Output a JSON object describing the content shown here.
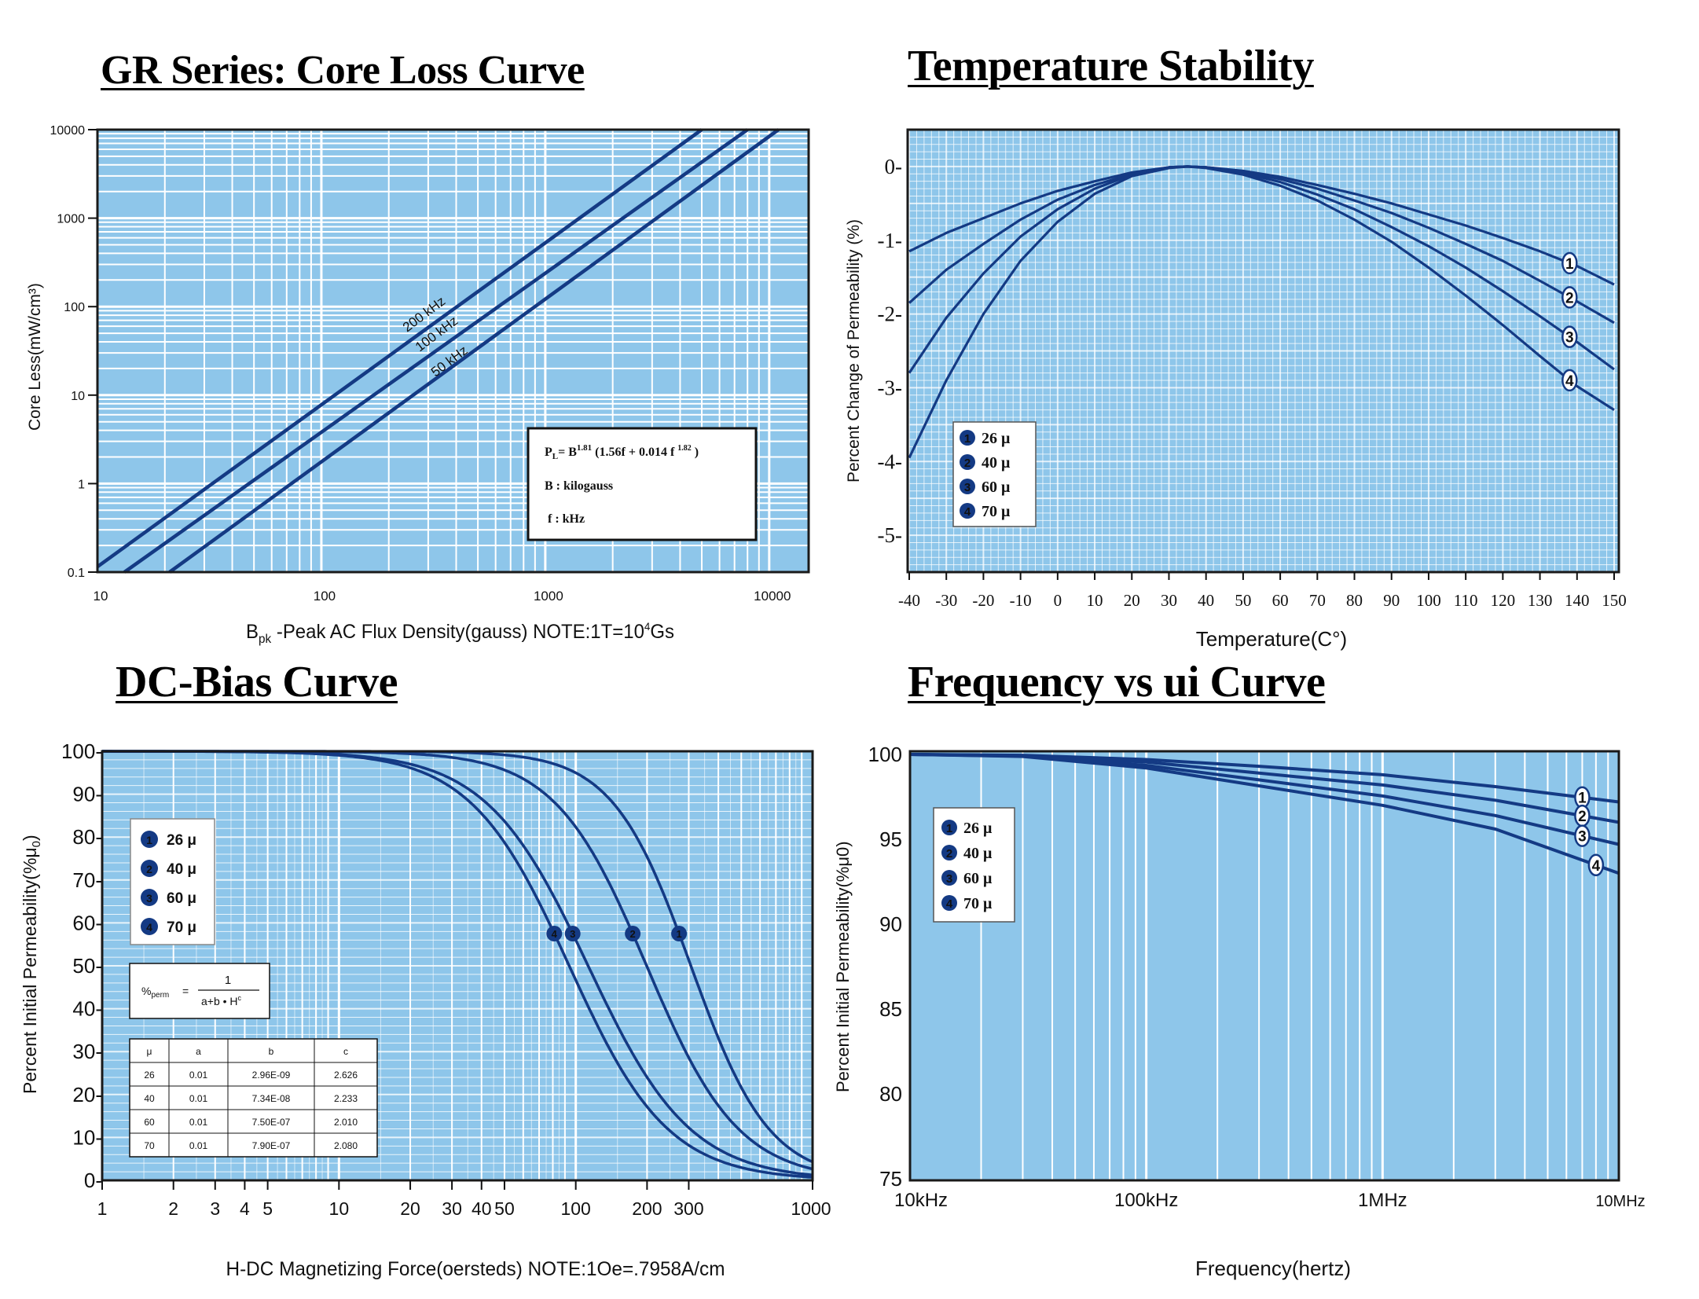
{
  "chart_data": [
    {
      "type": "line",
      "title": "GR Series: Core Loss Curve",
      "xlabel_main": "B",
      "xlabel_sub": "pk",
      "xlabel_rest": " -Peak AC Flux Density(gauss)  NOTE:1T=10",
      "xlabel_sup": "4",
      "xlabel_tail": "Gs",
      "ylabel": "Core Less(mW/cm³)",
      "xscale": "log",
      "yscale": "log",
      "xlim": [
        10,
        15000
      ],
      "ylim": [
        0.1,
        10000
      ],
      "x_ticks": [
        "10",
        "100",
        "1000",
        "10000"
      ],
      "y_ticks": [
        "0.1",
        "1",
        "10",
        "100",
        "1000",
        "10000"
      ],
      "series": [
        {
          "name": "200 kHz",
          "points": [
            [
              10,
              0.115
            ],
            [
              5000,
              10000
            ]
          ]
        },
        {
          "name": "100 kHz",
          "points": [
            [
              13.2,
              0.1
            ],
            [
              8000,
              10000
            ]
          ]
        },
        {
          "name": "50 kHz",
          "points": [
            [
              21,
              0.1
            ],
            [
              11000,
              10000
            ]
          ]
        }
      ],
      "formula": {
        "lhs": "P",
        "lhs_sub": "L",
        "mid1": "= B",
        "exp1": "1.81",
        "mid2": " (1.56f + 0.014 f ",
        "exp2": "1.82",
        "end": " )",
        "line2": "B : kilogauss",
        "line3": "f  : kHz"
      }
    },
    {
      "type": "line",
      "title": "Temperature Stability",
      "xlabel": "Temperature(C°)",
      "ylabel": "Percent Change of Permeability (%)",
      "xlim": [
        -40,
        150
      ],
      "ylim": [
        -5.5,
        0.5
      ],
      "x_ticks": [
        "-40",
        "-30",
        "-20",
        "-10",
        "0",
        "10",
        "20",
        "30",
        "40",
        "50",
        "60",
        "70",
        "80",
        "90",
        "100",
        "110",
        "120",
        "130",
        "140",
        "150"
      ],
      "y_ticks": [
        "0-",
        "-1-",
        "-2-",
        "-3-",
        "-4-",
        "-5-"
      ],
      "y_tick_values": [
        0,
        -1,
        -2,
        -3,
        -4,
        -5
      ],
      "legend": [
        "26 μ",
        "40 μ",
        "60 μ",
        "70 μ"
      ],
      "legend_nums": [
        "1",
        "2",
        "3",
        "4"
      ],
      "series": [
        {
          "name": "26 μ",
          "x": [
            -40,
            -30,
            -20,
            -10,
            0,
            10,
            20,
            30,
            35,
            40,
            50,
            60,
            70,
            80,
            90,
            100,
            110,
            120,
            130,
            140,
            150
          ],
          "y": [
            -1.15,
            -0.9,
            -0.7,
            -0.5,
            -0.33,
            -0.2,
            -0.08,
            -0.01,
            0,
            -0.01,
            -0.06,
            -0.14,
            -0.25,
            -0.37,
            -0.5,
            -0.65,
            -0.8,
            -0.97,
            -1.15,
            -1.35,
            -1.6
          ]
        },
        {
          "name": "40 μ",
          "x": [
            -40,
            -30,
            -20,
            -10,
            0,
            10,
            20,
            30,
            35,
            40,
            50,
            60,
            70,
            80,
            90,
            100,
            110,
            120,
            130,
            140,
            150
          ],
          "y": [
            -1.85,
            -1.4,
            -1.05,
            -0.72,
            -0.45,
            -0.25,
            -0.1,
            -0.01,
            0,
            -0.01,
            -0.07,
            -0.17,
            -0.3,
            -0.46,
            -0.63,
            -0.83,
            -1.05,
            -1.28,
            -1.55,
            -1.83,
            -2.12
          ]
        },
        {
          "name": "60 μ",
          "x": [
            -40,
            -30,
            -20,
            -10,
            0,
            10,
            20,
            30,
            35,
            40,
            50,
            60,
            70,
            80,
            90,
            100,
            110,
            120,
            130,
            140,
            150
          ],
          "y": [
            -2.8,
            -2.05,
            -1.45,
            -0.95,
            -0.58,
            -0.3,
            -0.11,
            -0.01,
            0,
            -0.01,
            -0.09,
            -0.21,
            -0.38,
            -0.58,
            -0.82,
            -1.08,
            -1.37,
            -1.69,
            -2.03,
            -2.38,
            -2.75
          ]
        },
        {
          "name": "70 μ",
          "x": [
            -40,
            -30,
            -20,
            -10,
            0,
            10,
            20,
            30,
            35,
            40,
            50,
            60,
            70,
            80,
            90,
            100,
            110,
            120,
            130,
            140,
            150
          ],
          "y": [
            -3.95,
            -2.9,
            -2.0,
            -1.28,
            -0.75,
            -0.37,
            -0.13,
            -0.02,
            0,
            -0.02,
            -0.11,
            -0.26,
            -0.46,
            -0.72,
            -1.02,
            -1.37,
            -1.75,
            -2.15,
            -2.57,
            -2.98,
            -3.3
          ]
        }
      ]
    },
    {
      "type": "line",
      "title": "DC-Bias Curve",
      "xlabel": "H-DC Magnetizing Force(oersteds) NOTE:1Oe=.7958A/cm",
      "ylabel": "Percent Initial Permeability(%μ",
      "ylabel_sub": "0",
      "ylabel_end": ")",
      "xscale": "log",
      "xlim": [
        1,
        1000
      ],
      "ylim": [
        0,
        100
      ],
      "x_ticks": [
        "1",
        "2",
        "3",
        "4",
        "5",
        "10",
        "20",
        "30",
        "40",
        "50",
        "100",
        "200",
        "300",
        "1000"
      ],
      "x_tick_values": [
        1,
        2,
        3,
        4,
        5,
        10,
        20,
        30,
        40,
        50,
        100,
        200,
        300,
        1000
      ],
      "y_ticks": [
        "0-",
        "10-",
        "20-",
        "30-",
        "40-",
        "50-",
        "60-",
        "70-",
        "80-",
        "90-",
        "100-"
      ],
      "legend": [
        "26 μ",
        "40 μ",
        "60 μ",
        "70 μ"
      ],
      "legend_nums": [
        "1",
        "2",
        "3",
        "4"
      ],
      "formula": {
        "lhs": "%",
        "lhs_sub": "perm",
        "eq": "=",
        "num": "1",
        "den": "a+b • H",
        "den_sup": "c"
      },
      "table": {
        "headers": [
          "μ",
          "a",
          "b",
          "c"
        ],
        "rows": [
          [
            "26",
            "0.01",
            "2.96E-09",
            "2.626"
          ],
          [
            "40",
            "0.01",
            "7.34E-08",
            "2.233"
          ],
          [
            "60",
            "0.01",
            "7.50E-07",
            "2.010"
          ],
          [
            "70",
            "0.01",
            "7.90E-07",
            "2.080"
          ]
        ]
      },
      "series": [
        {
          "name": "26 μ",
          "a": 0.01,
          "b": 2.96e-09,
          "c": 2.626
        },
        {
          "name": "40 μ",
          "a": 0.01,
          "b": 7.34e-08,
          "c": 2.233
        },
        {
          "name": "60 μ",
          "a": 0.01,
          "b": 7.5e-07,
          "c": 2.01
        },
        {
          "name": "70 μ",
          "a": 0.01,
          "b": 7.9e-07,
          "c": 2.08
        }
      ]
    },
    {
      "type": "line",
      "title": "Frequency vs ui Curve",
      "xlabel": "Frequency(hertz)",
      "ylabel": "Percent Initial Permeability(%μ0)",
      "xscale": "log",
      "xlim": [
        10000,
        10000000
      ],
      "ylim": [
        75,
        100
      ],
      "x_ticks": [
        "10kHz",
        "100kHz",
        "1MHz",
        "10MHz"
      ],
      "y_ticks": [
        "75",
        "80",
        "85",
        "90",
        "95",
        "100"
      ],
      "legend": [
        "26 μ",
        "40 μ",
        "60 μ",
        "70 μ"
      ],
      "legend_nums": [
        "1",
        "2",
        "3",
        "4"
      ],
      "series": [
        {
          "name": "26 μ",
          "x": [
            10000,
            30000,
            100000,
            300000,
            1000000,
            3000000,
            10000000
          ],
          "y": [
            100,
            99.95,
            99.7,
            99.3,
            98.8,
            98.1,
            97.2
          ]
        },
        {
          "name": "40 μ",
          "x": [
            10000,
            30000,
            100000,
            300000,
            1000000,
            3000000,
            10000000
          ],
          "y": [
            100,
            99.93,
            99.55,
            98.9,
            98.2,
            97.3,
            96.0
          ]
        },
        {
          "name": "60 μ",
          "x": [
            10000,
            30000,
            100000,
            300000,
            1000000,
            3000000,
            10000000
          ],
          "y": [
            100,
            99.9,
            99.35,
            98.5,
            97.55,
            96.4,
            94.7
          ]
        },
        {
          "name": "70 μ",
          "x": [
            10000,
            30000,
            100000,
            300000,
            1000000,
            3000000,
            10000000
          ],
          "y": [
            100,
            99.88,
            99.2,
            98.15,
            97.0,
            95.6,
            93.0
          ]
        }
      ]
    }
  ],
  "colors": {
    "panel": "#8ec6ea",
    "grid": "#ffffff",
    "curve": "#143a84",
    "marker": "#143a84"
  }
}
